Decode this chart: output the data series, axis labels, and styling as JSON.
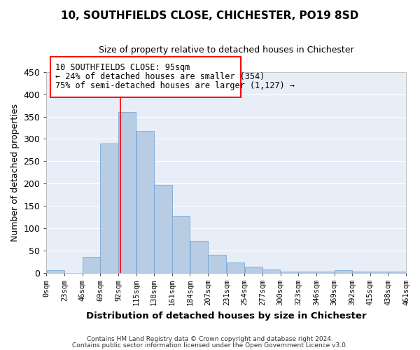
{
  "title": "10, SOUTHFIELDS CLOSE, CHICHESTER, PO19 8SD",
  "subtitle": "Size of property relative to detached houses in Chichester",
  "xlabel": "Distribution of detached houses by size in Chichester",
  "ylabel": "Number of detached properties",
  "bar_color": "#b8cce4",
  "bar_edge_color": "#7aa7d4",
  "background_color": "#e8eef8",
  "grid_color": "#ffffff",
  "fig_bg_color": "#ffffff",
  "bin_edges": [
    0,
    23,
    46,
    69,
    92,
    115,
    138,
    161,
    184,
    207,
    231,
    254,
    277,
    300,
    323,
    346,
    369,
    392,
    415,
    438,
    461
  ],
  "bin_labels": [
    "0sqm",
    "23sqm",
    "46sqm",
    "69sqm",
    "92sqm",
    "115sqm",
    "138sqm",
    "161sqm",
    "184sqm",
    "207sqm",
    "231sqm",
    "254sqm",
    "277sqm",
    "300sqm",
    "323sqm",
    "346sqm",
    "369sqm",
    "392sqm",
    "415sqm",
    "438sqm",
    "461sqm"
  ],
  "counts": [
    5,
    0,
    35,
    290,
    360,
    318,
    197,
    127,
    71,
    41,
    23,
    13,
    8,
    2,
    2,
    2,
    6,
    2,
    2,
    2
  ],
  "vline_x": 95,
  "ylim": [
    0,
    450
  ],
  "yticks": [
    0,
    50,
    100,
    150,
    200,
    250,
    300,
    350,
    400,
    450
  ],
  "ann_line1": "10 SOUTHFIELDS CLOSE: 95sqm",
  "ann_line2": "← 24% of detached houses are smaller (354)",
  "ann_line3": "75% of semi-detached houses are larger (1,127) →",
  "footer1": "Contains HM Land Registry data © Crown copyright and database right 2024.",
  "footer2": "Contains public sector information licensed under the Open Government Licence v3.0."
}
